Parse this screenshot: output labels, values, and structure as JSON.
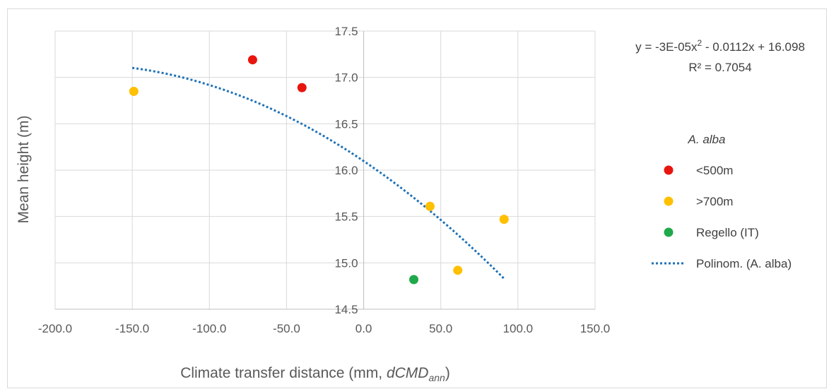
{
  "chart_data": {
    "type": "scatter",
    "xlabel": "Climate transfer distance (mm, ",
    "xlabel_var": "dCMD",
    "xlabel_sub": "ann",
    "xlabel_close": ")",
    "ylabel": "Mean height (m)",
    "xlim": [
      -200,
      150
    ],
    "ylim": [
      14.5,
      17.5
    ],
    "x_ticks": [
      "-200.0",
      "-150.0",
      "-100.0",
      "-50.0",
      "0.0",
      "50.0",
      "100.0",
      "150.0"
    ],
    "y_ticks": [
      "14.5",
      "15.0",
      "15.5",
      "16.0",
      "16.5",
      "17.0",
      "17.5"
    ],
    "x_tick_values": [
      -200,
      -150,
      -100,
      -50,
      0,
      50,
      100,
      150
    ],
    "y_tick_values": [
      14.5,
      15.0,
      15.5,
      16.0,
      16.5,
      17.0,
      17.5
    ],
    "grid": true,
    "legend_title": "A. alba",
    "series": [
      {
        "name": "<500m",
        "color": "#e8150f",
        "points": [
          [
            -72,
            17.19
          ],
          [
            -40,
            16.89
          ]
        ]
      },
      {
        "name": ">700m",
        "color": "#ffc000",
        "points": [
          [
            -149,
            16.85
          ],
          [
            43,
            15.61
          ],
          [
            61,
            14.92
          ],
          [
            91,
            15.47
          ]
        ]
      },
      {
        "name": "Regello (IT)",
        "color": "#1fa94b",
        "points": [
          [
            32.5,
            14.82
          ]
        ]
      }
    ],
    "trendline": {
      "name": "Polinom. (A. alba)",
      "color": "#1f72b8",
      "type": "polynomial",
      "coefficients": [
        -3e-05,
        -0.0112,
        16.098
      ],
      "x_range": [
        -150,
        91
      ],
      "equation": "y = -3E-05x",
      "equation_sup": "2",
      "equation_rest": " - 0.0112x + 16.098",
      "r2": "R² = 0.7054"
    }
  }
}
